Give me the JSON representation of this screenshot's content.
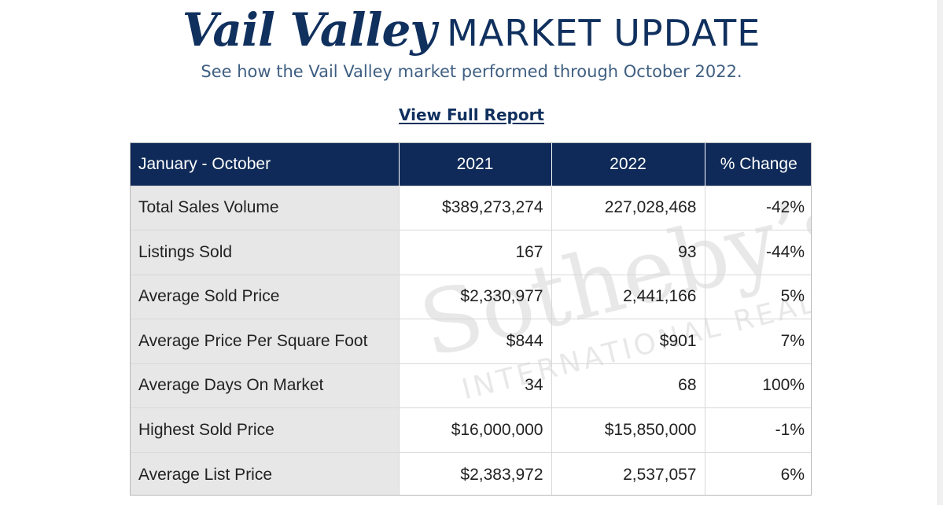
{
  "header": {
    "title_script": "Vail Valley",
    "title_caps": "MARKET UPDATE",
    "subtitle": "See how the Vail Valley market performed through October 2022.",
    "report_link": "View Full Report"
  },
  "table": {
    "columns": [
      "January - October",
      "2021",
      "2022",
      "% Change"
    ],
    "rows": [
      [
        "Total Sales Volume",
        "$389,273,274",
        "227,028,468",
        "-42%"
      ],
      [
        "Listings Sold",
        "167",
        "93",
        "-44%"
      ],
      [
        "Average Sold Price",
        "$2,330,977",
        "2,441,166",
        "5%"
      ],
      [
        "Average Price Per Square Foot",
        "$844",
        "$901",
        "7%"
      ],
      [
        "Average Days On Market",
        "34",
        "68",
        "100%"
      ],
      [
        "Highest Sold Price",
        "$16,000,000",
        "$15,850,000",
        "-1%"
      ],
      [
        "Average List Price",
        "$2,383,972",
        "2,537,057",
        "6%"
      ]
    ]
  },
  "watermark": {
    "brand": "Sotheby's",
    "tagline": "INTERNATIONAL REALTY"
  },
  "colors": {
    "navy": "#0f2a58",
    "title_navy": "#10305e",
    "subtitle_blue": "#3f5f82",
    "label_cell_gray": "#e7e7e7"
  }
}
